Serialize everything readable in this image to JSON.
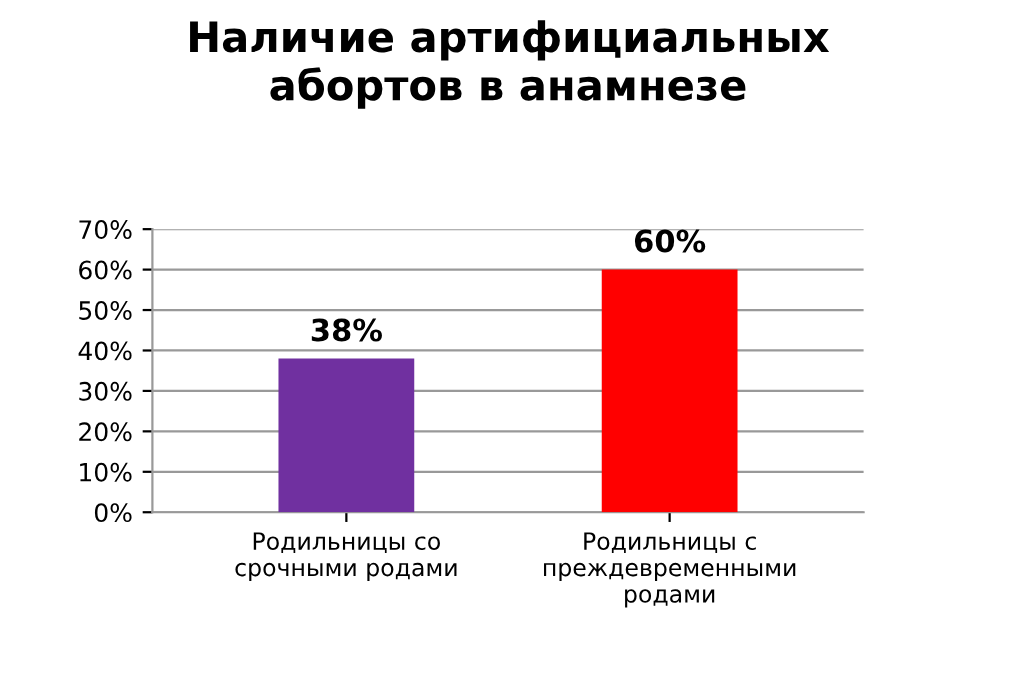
{
  "chart_data": {
    "type": "bar",
    "title": "Наличие артифициальных\nабортов в анамнезе",
    "categories": [
      "Родильницы со\nсрочными родами",
      "Родильницы с\nпреждевременными\nродами"
    ],
    "values": [
      38,
      60
    ],
    "colors": [
      "#7030a0",
      "#ff0000"
    ],
    "value_labels": [
      "38%",
      "60%"
    ],
    "ylim": [
      0,
      70
    ],
    "yticks": [
      {
        "value": 0,
        "label": "0%"
      },
      {
        "value": 10,
        "label": "10%"
      },
      {
        "value": 20,
        "label": "20%"
      },
      {
        "value": 30,
        "label": "30%"
      },
      {
        "value": 40,
        "label": "40%"
      },
      {
        "value": 50,
        "label": "50%"
      },
      {
        "value": 60,
        "label": "60%"
      },
      {
        "value": 70,
        "label": "70%"
      }
    ],
    "grid": "y"
  }
}
